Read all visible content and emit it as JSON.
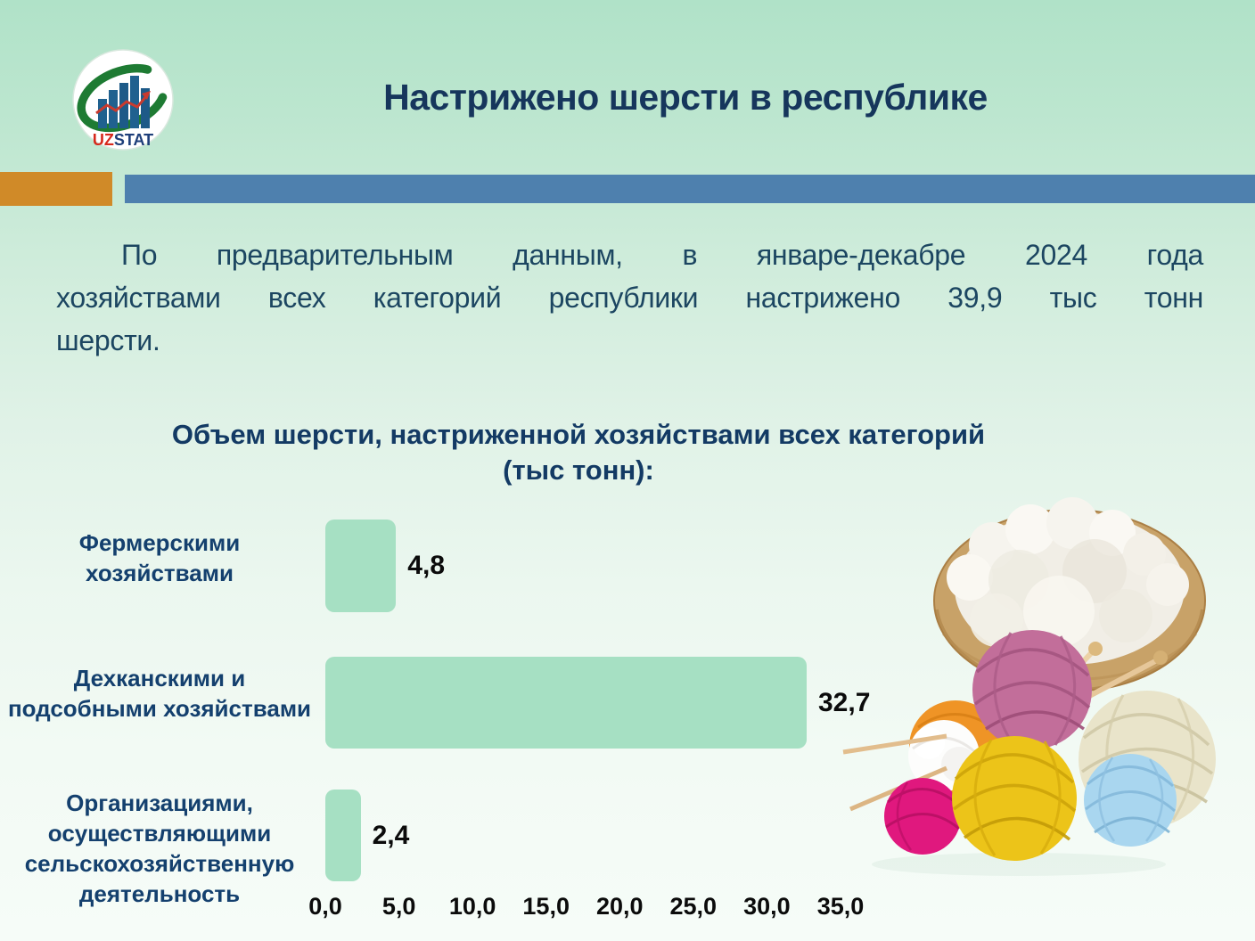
{
  "header": {
    "title": "Настрижено шерсти в республике",
    "logo": {
      "uz": "UZ",
      "stat": "STAT"
    }
  },
  "intro": {
    "lines": [
      "По предварительным данным, в январе-декабре 2024 года",
      "хозяйствами всех категорий республики настрижено 39,9 тыс тонн",
      "шерсти."
    ]
  },
  "chart": {
    "title_line1": "Объем шерсти, настриженной хозяйствами всех категорий",
    "title_line2": "(тыс тонн):"
  },
  "chart_data": {
    "type": "bar",
    "orientation": "horizontal",
    "title": "Объем шерсти, настриженной хозяйствами всех категорий (тыс тонн)",
    "categories": [
      "Фермерскими хозяйствами",
      "Дехканскими и подсобными хозяйствами",
      "Организациями, осуществляющими сельскохозяйственную деятельность"
    ],
    "values": [
      4.8,
      32.7,
      2.4
    ],
    "value_labels": [
      "4,8",
      "32,7",
      "2,4"
    ],
    "x_ticks": [
      "0,0",
      "5,0",
      "10,0",
      "15,0",
      "20,0",
      "25,0",
      "30,0",
      "35,0"
    ],
    "xlim": [
      0,
      35
    ],
    "tick_step": 5,
    "grid": false,
    "legend": "none",
    "bar_color": "#a6e0c3"
  },
  "colors": {
    "background_top": "#b0e2c8",
    "background_bottom": "#f6fcf8",
    "divider_orange": "#d08a28",
    "divider_blue": "#4e80ae",
    "title_navy": "#16365c",
    "paragraph_navy": "#1c4661",
    "label_navy": "#14406e",
    "bar_mint": "#a6e0c3"
  }
}
